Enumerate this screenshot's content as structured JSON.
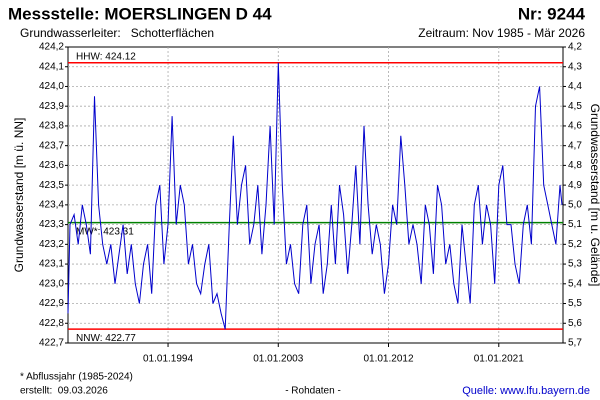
{
  "chart_data": {
    "type": "line",
    "title": "Messstelle: MOERSLINGEN D 44",
    "number": "Nr: 9244",
    "subtitle": "Grundwasserleiter:   Schotterflächen",
    "period": "Zeitraum: Nov 1985 - Mär 2026",
    "ylabel": "Grundwasserstand [m ü. NN]",
    "y2label": "Grundwasserstand [m u. Gelände]",
    "footnote": "* Abflussjahr (1985-2024)",
    "created": "erstellt:  09.03.2026",
    "datatype": "- Rohdaten -",
    "source": "Quelle: www.lfu.bayern.de",
    "grid": true,
    "xlim": [
      "01.11.1985",
      "31.03.2026"
    ],
    "xticks": [
      "01.01.1994",
      "01.01.2003",
      "01.01.2012",
      "01.01.2021"
    ],
    "ylim": [
      422.7,
      424.2
    ],
    "yticks": [
      {
        "value": 422.7,
        "label": "422,7"
      },
      {
        "value": 422.8,
        "label": "422,8"
      },
      {
        "value": 422.9,
        "label": "422,9"
      },
      {
        "value": 423.0,
        "label": "423,0"
      },
      {
        "value": 423.1,
        "label": "423,1"
      },
      {
        "value": 423.2,
        "label": "423,2"
      },
      {
        "value": 423.3,
        "label": "423,3"
      },
      {
        "value": 423.4,
        "label": "423,4"
      },
      {
        "value": 423.5,
        "label": "423,5"
      },
      {
        "value": 423.6,
        "label": "423,6"
      },
      {
        "value": 423.7,
        "label": "423,7"
      },
      {
        "value": 423.8,
        "label": "423,8"
      },
      {
        "value": 423.9,
        "label": "423,9"
      },
      {
        "value": 424.0,
        "label": "424,0"
      },
      {
        "value": 424.1,
        "label": "424,1"
      },
      {
        "value": 424.2,
        "label": "424,2"
      }
    ],
    "y2lim": [
      5.7,
      4.2
    ],
    "y2ticks": [
      {
        "value": 5.7,
        "label": "5,7"
      },
      {
        "value": 5.6,
        "label": "5,6"
      },
      {
        "value": 5.5,
        "label": "5,5"
      },
      {
        "value": 5.4,
        "label": "5,4"
      },
      {
        "value": 5.3,
        "label": "5,3"
      },
      {
        "value": 5.2,
        "label": "5,2"
      },
      {
        "value": 5.1,
        "label": "5,1"
      },
      {
        "value": 5.0,
        "label": "5,0"
      },
      {
        "value": 4.9,
        "label": "4,9"
      },
      {
        "value": 4.8,
        "label": "4,8"
      },
      {
        "value": 4.7,
        "label": "4,7"
      },
      {
        "value": 4.6,
        "label": "4,6"
      },
      {
        "value": 4.5,
        "label": "4,5"
      },
      {
        "value": 4.4,
        "label": "4,4"
      },
      {
        "value": 4.3,
        "label": "4,3"
      },
      {
        "value": 4.2,
        "label": "4,2"
      }
    ],
    "ref_lines": [
      {
        "label": "HHW: 424.12",
        "value": 424.12,
        "color": "#ff0000"
      },
      {
        "label": "MW*: 423.31",
        "value": 423.31,
        "color": "#008000"
      },
      {
        "label": "NNW: 422.77",
        "value": 422.77,
        "color": "#ff0000"
      }
    ],
    "x": [
      "01.11.1985",
      "01.01.1986",
      "01.05.1986",
      "01.09.1986",
      "01.01.1987",
      "01.05.1987",
      "01.09.1987",
      "01.01.1988",
      "01.05.1988",
      "01.09.1988",
      "01.01.1989",
      "01.05.1989",
      "01.09.1989",
      "01.01.1990",
      "01.05.1990",
      "01.09.1990",
      "01.01.1991",
      "01.05.1991",
      "01.09.1991",
      "01.01.1992",
      "01.05.1992",
      "01.09.1992",
      "01.01.1993",
      "01.05.1993",
      "01.09.1993",
      "01.01.1994",
      "01.05.1994",
      "01.09.1994",
      "01.01.1995",
      "01.05.1995",
      "01.09.1995",
      "01.01.1996",
      "01.05.1996",
      "01.09.1996",
      "01.01.1997",
      "01.05.1997",
      "01.09.1997",
      "01.01.1998",
      "01.05.1998",
      "01.09.1998",
      "01.01.1999",
      "01.05.1999",
      "01.09.1999",
      "01.01.2000",
      "01.05.2000",
      "01.09.2000",
      "01.01.2001",
      "01.05.2001",
      "01.09.2001",
      "01.01.2002",
      "01.05.2002",
      "01.09.2002",
      "01.01.2003",
      "01.05.2003",
      "01.09.2003",
      "01.01.2004",
      "01.05.2004",
      "01.09.2004",
      "01.01.2005",
      "01.05.2005",
      "01.09.2005",
      "01.01.2006",
      "01.05.2006",
      "01.09.2006",
      "01.01.2007",
      "01.05.2007",
      "01.09.2007",
      "01.01.2008",
      "01.05.2008",
      "01.09.2008",
      "01.01.2009",
      "01.05.2009",
      "01.09.2009",
      "01.01.2010",
      "01.05.2010",
      "01.09.2010",
      "01.01.2011",
      "01.05.2011",
      "01.09.2011",
      "01.01.2012",
      "01.05.2012",
      "01.09.2012",
      "01.01.2013",
      "01.05.2013",
      "01.09.2013",
      "01.01.2014",
      "01.05.2014",
      "01.09.2014",
      "01.01.2015",
      "01.05.2015",
      "01.09.2015",
      "01.01.2016",
      "01.05.2016",
      "01.09.2016",
      "01.01.2017",
      "01.05.2017",
      "01.09.2017",
      "01.01.2018",
      "01.05.2018",
      "01.09.2018",
      "01.01.2019",
      "01.05.2019",
      "01.09.2019",
      "01.01.2020",
      "01.05.2020",
      "01.09.2020",
      "01.01.2021",
      "01.05.2021",
      "01.09.2021",
      "01.01.2022",
      "01.05.2022",
      "01.09.2022",
      "01.01.2023",
      "01.05.2023",
      "01.09.2023",
      "01.01.2024",
      "01.05.2024",
      "01.09.2024",
      "01.01.2025",
      "01.05.2025",
      "01.09.2025",
      "01.01.2026",
      "01.03.2026"
    ],
    "series": [
      {
        "name": "Grundwasserstand",
        "color": "#0000cc",
        "values": [
          422.85,
          423.3,
          423.35,
          423.2,
          423.4,
          423.3,
          423.15,
          423.95,
          423.4,
          423.2,
          423.1,
          423.2,
          423.0,
          423.15,
          423.3,
          423.05,
          423.2,
          423.0,
          422.9,
          423.1,
          423.2,
          422.95,
          423.4,
          423.5,
          423.1,
          423.3,
          423.85,
          423.3,
          423.5,
          423.4,
          423.1,
          423.2,
          423.0,
          422.95,
          423.1,
          423.2,
          422.9,
          422.95,
          422.85,
          422.77,
          423.3,
          423.75,
          423.3,
          423.5,
          423.6,
          423.2,
          423.3,
          423.5,
          423.15,
          423.4,
          423.8,
          423.3,
          424.12,
          423.5,
          423.1,
          423.2,
          423.0,
          422.95,
          423.3,
          423.4,
          423.0,
          423.2,
          423.3,
          422.95,
          423.1,
          423.4,
          423.1,
          423.5,
          423.35,
          423.05,
          423.3,
          423.6,
          423.2,
          423.8,
          423.4,
          423.15,
          423.3,
          423.2,
          422.95,
          423.1,
          423.4,
          423.3,
          423.75,
          423.5,
          423.2,
          423.3,
          423.2,
          423.0,
          423.4,
          423.3,
          423.05,
          423.5,
          423.4,
          423.1,
          423.2,
          423.0,
          422.9,
          423.3,
          423.1,
          422.9,
          423.4,
          423.5,
          423.2,
          423.4,
          423.3,
          423.0,
          423.5,
          423.6,
          423.3,
          423.3,
          423.1,
          423.0,
          423.3,
          423.4,
          423.2,
          423.9,
          424.0,
          423.5,
          423.4,
          423.3,
          423.2,
          423.5,
          423.4
        ]
      }
    ]
  }
}
